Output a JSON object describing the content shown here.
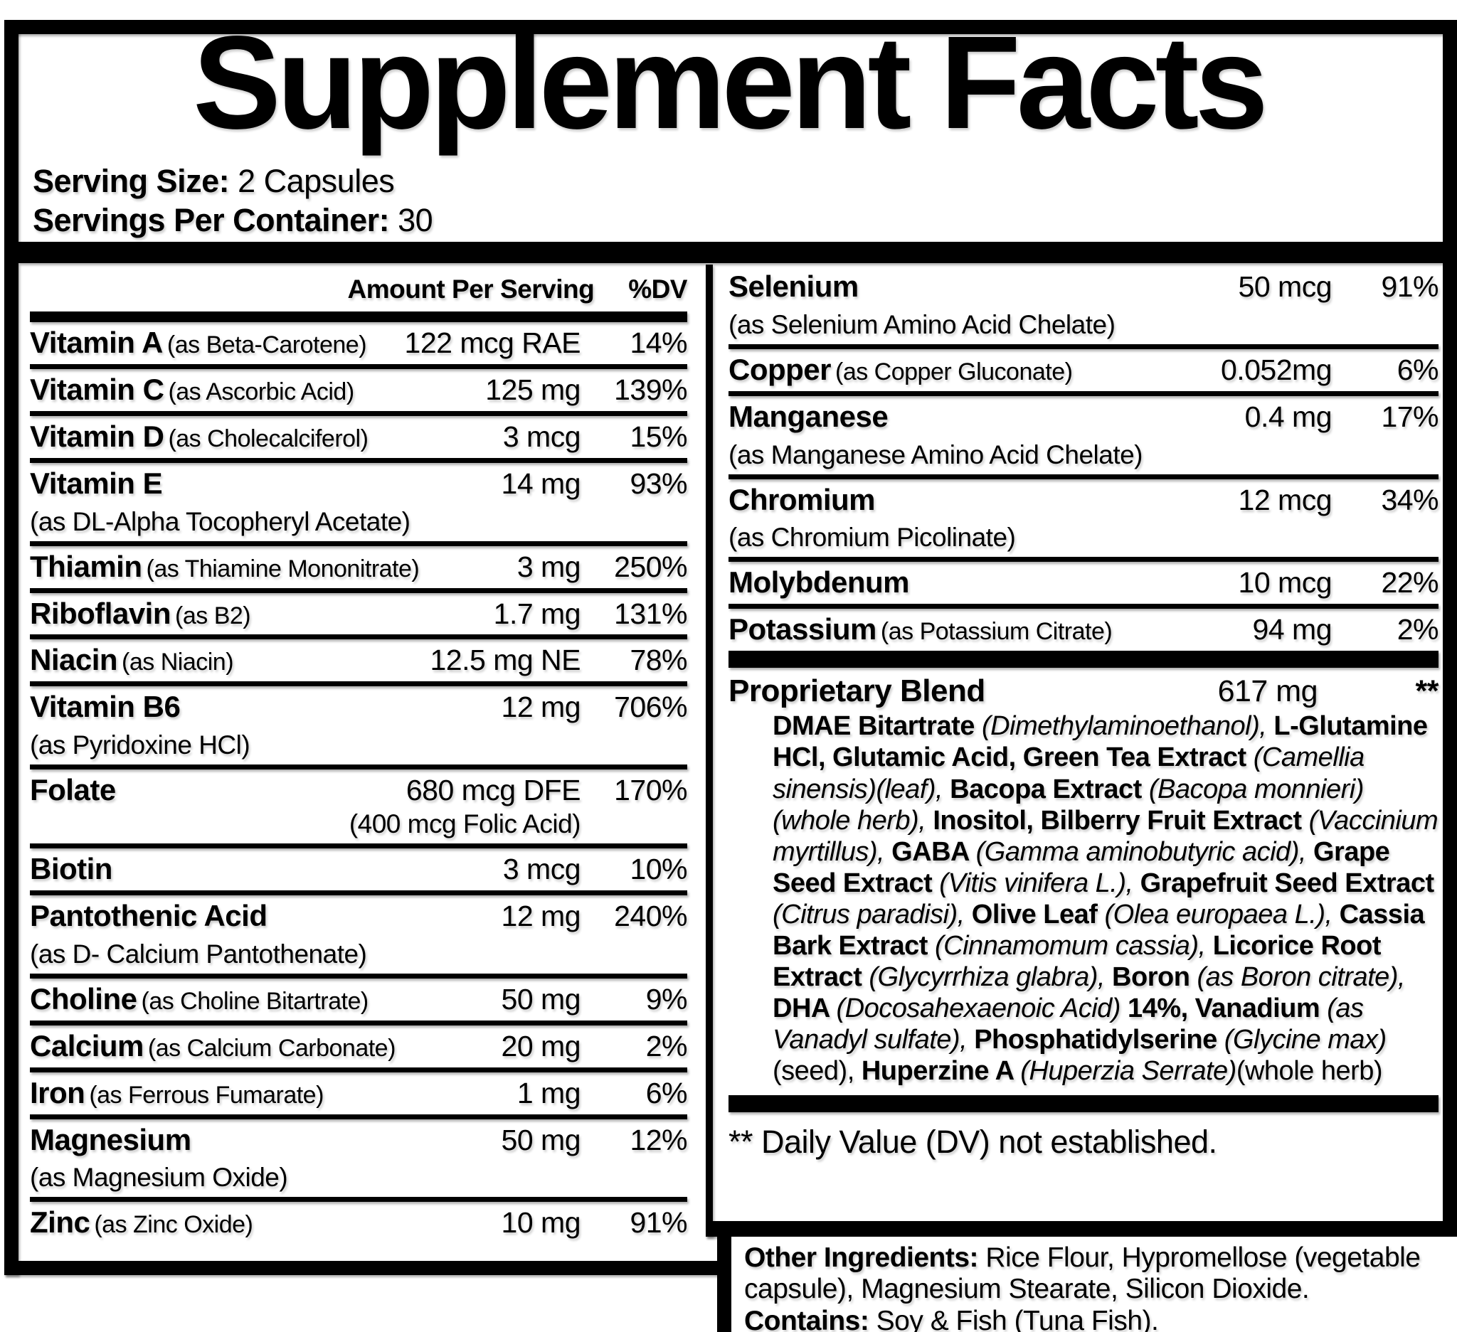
{
  "title": "Supplement Facts",
  "serving": {
    "size_label": "Serving Size:",
    "size_value": " 2 Capsules",
    "per_container_label": "Servings Per Container:",
    "per_container_value": " 30"
  },
  "colors": {
    "ink": "#000000",
    "paper": "#ffffff"
  },
  "table": {
    "header": {
      "amount": "Amount Per Serving",
      "dv": "%DV"
    },
    "left_rows": [
      {
        "name": "Vitamin A",
        "form": "(as Beta-Carotene)",
        "amount": "122 mcg RAE",
        "dv": "14%"
      },
      {
        "name": "Vitamin C",
        "form": "(as Ascorbic Acid)",
        "amount": "125 mg",
        "dv": "139%"
      },
      {
        "name": "Vitamin D",
        "form": "(as Cholecalciferol)",
        "amount": "3 mcg",
        "dv": "15%"
      },
      {
        "name": "Vitamin E",
        "sub": "(as DL-Alpha Tocopheryl Acetate)",
        "amount": "14 mg",
        "dv": "93%"
      },
      {
        "name": "Thiamin",
        "form": "(as Thiamine Mononitrate)",
        "amount": "3 mg",
        "dv": "250%"
      },
      {
        "name": "Riboflavin",
        "form": "(as B2)",
        "amount": "1.7 mg",
        "dv": "131%"
      },
      {
        "name": "Niacin",
        "form": "(as Niacin)",
        "amount": "12.5 mg NE",
        "dv": "78%"
      },
      {
        "name": "Vitamin B6",
        "sub": "(as Pyridoxine HCl)",
        "amount": "12 mg",
        "dv": "706%"
      },
      {
        "name": "Folate",
        "amount": "680 mcg DFE",
        "dv": "170%",
        "amount_sub": "(400 mcg Folic Acid)"
      },
      {
        "name": "Biotin",
        "amount": "3 mcg",
        "dv": "10%"
      },
      {
        "name": "Pantothenic Acid",
        "sub": "(as D- Calcium Pantothenate)",
        "amount": "12 mg",
        "dv": "240%"
      },
      {
        "name": "Choline",
        "form": "(as Choline Bitartrate)",
        "amount": "50 mg",
        "dv": "9%"
      },
      {
        "name": "Calcium",
        "form": "(as Calcium Carbonate)",
        "amount": "20 mg",
        "dv": "2%"
      },
      {
        "name": "Iron",
        "form": "(as Ferrous Fumarate)",
        "amount": "1 mg",
        "dv": "6%"
      },
      {
        "name": "Magnesium",
        "sub": "(as Magnesium Oxide)",
        "amount": "50 mg",
        "dv": "12%"
      },
      {
        "name": "Zinc",
        "form": "(as Zinc Oxide)",
        "amount": "10 mg",
        "dv": "91%"
      }
    ],
    "right_rows": [
      {
        "name": "Selenium",
        "sub": "(as Selenium Amino Acid Chelate)",
        "amount": "50 mcg",
        "dv": "91%"
      },
      {
        "name": "Copper",
        "form": "(as Copper Gluconate)",
        "amount": "0.052mg",
        "dv": "6%"
      },
      {
        "name": "Manganese",
        "sub": "(as Manganese Amino Acid Chelate)",
        "amount": "0.4 mg",
        "dv": "17%"
      },
      {
        "name": "Chromium",
        "sub": "(as Chromium Picolinate)",
        "amount": "12 mcg",
        "dv": "34%"
      },
      {
        "name": "Molybdenum",
        "amount": "10 mcg",
        "dv": "22%"
      },
      {
        "name": "Potassium",
        "form": "(as Potassium Citrate)",
        "amount": "94 mg",
        "dv": "2%"
      }
    ],
    "blend": {
      "name": "Proprietary Blend",
      "amount": "617 mg",
      "dv": "**",
      "segments": [
        {
          "style": "bold",
          "text": "DMAE Bitartrate "
        },
        {
          "style": "italic",
          "text": "(Dimethylaminoethanol), "
        },
        {
          "style": "bold",
          "text": "L-Glutamine HCl, Glutamic Acid, Green Tea Extract "
        },
        {
          "style": "italic",
          "text": "(Camellia sinensis)(leaf), "
        },
        {
          "style": "bold",
          "text": "Bacopa Extract "
        },
        {
          "style": "italic",
          "text": "(Bacopa monnieri)(whole herb), "
        },
        {
          "style": "bold",
          "text": "Inositol, Bilberry Fruit Extract "
        },
        {
          "style": "italic",
          "text": "(Vaccinium myrtillus), "
        },
        {
          "style": "bold",
          "text": "GABA "
        },
        {
          "style": "italic",
          "text": "(Gamma aminobutyric acid), "
        },
        {
          "style": "bold",
          "text": "Grape Seed Extract "
        },
        {
          "style": "italic",
          "text": "(Vitis vinifera L.), "
        },
        {
          "style": "bold",
          "text": "Grapefruit Seed Extract "
        },
        {
          "style": "italic",
          "text": "(Citrus paradisi), "
        },
        {
          "style": "bold",
          "text": "Olive Leaf "
        },
        {
          "style": "italic",
          "text": "(Olea europaea L.), "
        },
        {
          "style": "bold",
          "text": "Cassia Bark Extract "
        },
        {
          "style": "italic",
          "text": "(Cinnamomum cassia), "
        },
        {
          "style": "bold",
          "text": "Licorice Root Extract "
        },
        {
          "style": "italic",
          "text": "(Glycyrrhiza glabra), "
        },
        {
          "style": "bold",
          "text": "Boron "
        },
        {
          "style": "italic",
          "text": "(as Boron citrate), "
        },
        {
          "style": "bold",
          "text": "DHA "
        },
        {
          "style": "italic",
          "text": "(Docosahexaenoic Acid) "
        },
        {
          "style": "bold",
          "text": "14%, Vanadium "
        },
        {
          "style": "italic",
          "text": "(as Vanadyl sulfate), "
        },
        {
          "style": "bold",
          "text": "Phosphatidylserine "
        },
        {
          "style": "italic",
          "text": "(Glycine max)"
        },
        {
          "style": "regular",
          "text": "(seed), "
        },
        {
          "style": "bold",
          "text": "Huperzine A "
        },
        {
          "style": "italic",
          "text": "(Huperzia Serrate)"
        },
        {
          "style": "regular",
          "text": "(whole herb)"
        }
      ]
    },
    "footnote": "** Daily Value (DV) not established."
  },
  "other_ingredients": {
    "label": "Other Ingredients:",
    "text": " Rice Flour, Hypromellose (vegetable capsule), Magnesium Stearate, Silicon Dioxide.",
    "contains_label": "Contains:",
    "contains_text": " Soy & Fish (Tuna Fish)."
  }
}
